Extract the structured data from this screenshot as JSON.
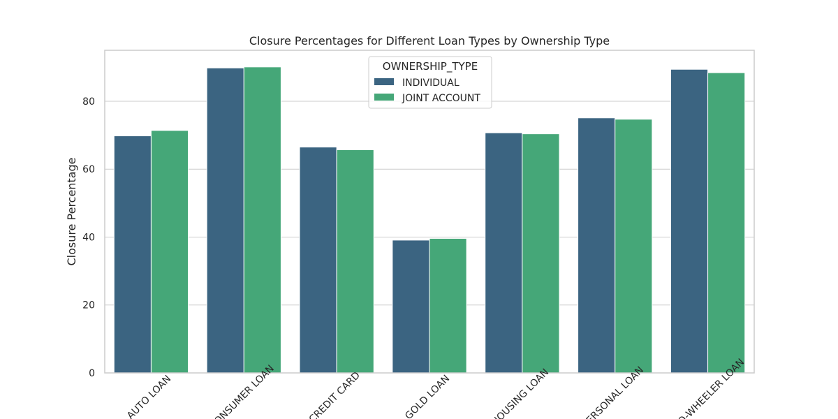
{
  "chart_data": {
    "type": "bar",
    "title": "Closure Percentages for Different Loan Types by Ownership Type",
    "xlabel": "",
    "ylabel": "Closure Percentage",
    "categories": [
      "AUTO LOAN",
      "CONSUMER LOAN",
      "CREDIT CARD",
      "GOLD LOAN",
      "HOUSING LOAN",
      "PERSONAL LOAN",
      "TWO-WHEELER LOAN"
    ],
    "series": [
      {
        "name": "INDIVIDUAL",
        "color": "#3b6481",
        "values": [
          69.8,
          89.8,
          66.5,
          39.1,
          70.7,
          75.1,
          89.4
        ]
      },
      {
        "name": "JOINT ACCOUNT",
        "color": "#45a778",
        "values": [
          71.4,
          90.1,
          65.7,
          39.6,
          70.4,
          74.7,
          88.4
        ]
      }
    ],
    "ylim": [
      0,
      95
    ],
    "yticks": [
      0,
      20,
      40,
      60,
      80
    ],
    "grid": true,
    "legend": {
      "title": "OWNERSHIP_TYPE",
      "placement": "top-center"
    }
  }
}
